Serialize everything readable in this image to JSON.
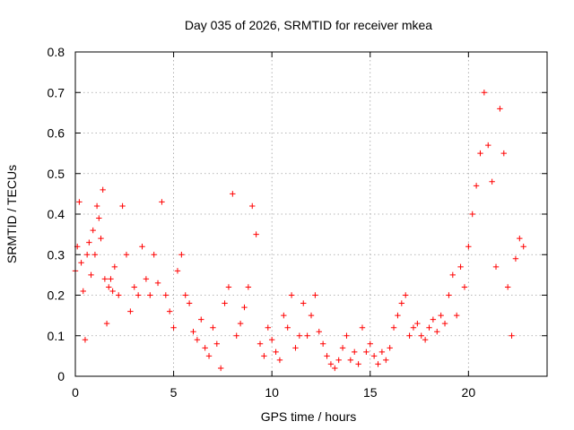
{
  "chart_data": {
    "type": "scatter",
    "title": "Day 035 of 2026, SRMTID for receiver mkea",
    "xlabel": "GPS time / hours",
    "ylabel": "SRMTID / TECUs",
    "xlim": [
      0,
      24
    ],
    "ylim": [
      0,
      0.8
    ],
    "xticks": [
      0,
      5,
      10,
      15,
      20
    ],
    "yticks": [
      0,
      0.1,
      0.2,
      0.3,
      0.4,
      0.5,
      0.6,
      0.7,
      0.8
    ],
    "grid": true,
    "marker": "plus",
    "color": "#ff0000",
    "series": [
      {
        "name": "SRMTID",
        "points": [
          [
            0.0,
            0.26
          ],
          [
            0.1,
            0.32
          ],
          [
            0.2,
            0.43
          ],
          [
            0.3,
            0.28
          ],
          [
            0.4,
            0.21
          ],
          [
            0.5,
            0.09
          ],
          [
            0.6,
            0.3
          ],
          [
            0.7,
            0.33
          ],
          [
            0.8,
            0.25
          ],
          [
            0.9,
            0.36
          ],
          [
            1.0,
            0.3
          ],
          [
            1.1,
            0.42
          ],
          [
            1.2,
            0.39
          ],
          [
            1.3,
            0.34
          ],
          [
            1.4,
            0.46
          ],
          [
            1.5,
            0.24
          ],
          [
            1.6,
            0.13
          ],
          [
            1.7,
            0.22
          ],
          [
            1.8,
            0.24
          ],
          [
            1.9,
            0.21
          ],
          [
            2.0,
            0.27
          ],
          [
            2.2,
            0.2
          ],
          [
            2.4,
            0.42
          ],
          [
            2.6,
            0.3
          ],
          [
            2.8,
            0.16
          ],
          [
            3.0,
            0.22
          ],
          [
            3.2,
            0.2
          ],
          [
            3.4,
            0.32
          ],
          [
            3.6,
            0.24
          ],
          [
            3.8,
            0.2
          ],
          [
            4.0,
            0.3
          ],
          [
            4.2,
            0.23
          ],
          [
            4.4,
            0.43
          ],
          [
            4.6,
            0.2
          ],
          [
            4.8,
            0.16
          ],
          [
            5.0,
            0.12
          ],
          [
            5.2,
            0.26
          ],
          [
            5.4,
            0.3
          ],
          [
            5.6,
            0.2
          ],
          [
            5.8,
            0.18
          ],
          [
            6.0,
            0.11
          ],
          [
            6.2,
            0.09
          ],
          [
            6.4,
            0.14
          ],
          [
            6.6,
            0.07
          ],
          [
            6.8,
            0.05
          ],
          [
            7.0,
            0.12
          ],
          [
            7.2,
            0.08
          ],
          [
            7.4,
            0.02
          ],
          [
            7.6,
            0.18
          ],
          [
            7.8,
            0.22
          ],
          [
            8.0,
            0.45
          ],
          [
            8.2,
            0.1
          ],
          [
            8.4,
            0.13
          ],
          [
            8.6,
            0.17
          ],
          [
            8.8,
            0.22
          ],
          [
            9.0,
            0.42
          ],
          [
            9.2,
            0.35
          ],
          [
            9.4,
            0.08
          ],
          [
            9.6,
            0.05
          ],
          [
            9.8,
            0.12
          ],
          [
            10.0,
            0.09
          ],
          [
            10.2,
            0.06
          ],
          [
            10.4,
            0.04
          ],
          [
            10.6,
            0.15
          ],
          [
            10.8,
            0.12
          ],
          [
            11.0,
            0.2
          ],
          [
            11.2,
            0.07
          ],
          [
            11.4,
            0.1
          ],
          [
            11.6,
            0.18
          ],
          [
            11.8,
            0.1
          ],
          [
            12.0,
            0.15
          ],
          [
            12.2,
            0.2
          ],
          [
            12.4,
            0.11
          ],
          [
            12.6,
            0.08
          ],
          [
            12.8,
            0.05
          ],
          [
            13.0,
            0.03
          ],
          [
            13.2,
            0.02
          ],
          [
            13.4,
            0.04
          ],
          [
            13.6,
            0.07
          ],
          [
            13.8,
            0.1
          ],
          [
            14.0,
            0.04
          ],
          [
            14.2,
            0.06
          ],
          [
            14.4,
            0.03
          ],
          [
            14.6,
            0.12
          ],
          [
            14.8,
            0.06
          ],
          [
            15.0,
            0.08
          ],
          [
            15.2,
            0.05
          ],
          [
            15.4,
            0.03
          ],
          [
            15.6,
            0.06
          ],
          [
            15.8,
            0.04
          ],
          [
            16.0,
            0.07
          ],
          [
            16.2,
            0.12
          ],
          [
            16.4,
            0.15
          ],
          [
            16.6,
            0.18
          ],
          [
            16.8,
            0.2
          ],
          [
            17.0,
            0.1
          ],
          [
            17.2,
            0.12
          ],
          [
            17.4,
            0.13
          ],
          [
            17.6,
            0.1
          ],
          [
            17.8,
            0.09
          ],
          [
            18.0,
            0.12
          ],
          [
            18.2,
            0.14
          ],
          [
            18.4,
            0.11
          ],
          [
            18.6,
            0.15
          ],
          [
            18.8,
            0.13
          ],
          [
            19.0,
            0.2
          ],
          [
            19.2,
            0.25
          ],
          [
            19.4,
            0.15
          ],
          [
            19.6,
            0.27
          ],
          [
            19.8,
            0.22
          ],
          [
            20.0,
            0.32
          ],
          [
            20.2,
            0.4
          ],
          [
            20.4,
            0.47
          ],
          [
            20.6,
            0.55
          ],
          [
            20.8,
            0.7
          ],
          [
            21.0,
            0.57
          ],
          [
            21.2,
            0.48
          ],
          [
            21.4,
            0.27
          ],
          [
            21.6,
            0.66
          ],
          [
            21.8,
            0.55
          ],
          [
            22.0,
            0.22
          ],
          [
            22.2,
            0.1
          ],
          [
            22.4,
            0.29
          ],
          [
            22.6,
            0.34
          ],
          [
            22.8,
            0.32
          ]
        ]
      }
    ]
  }
}
